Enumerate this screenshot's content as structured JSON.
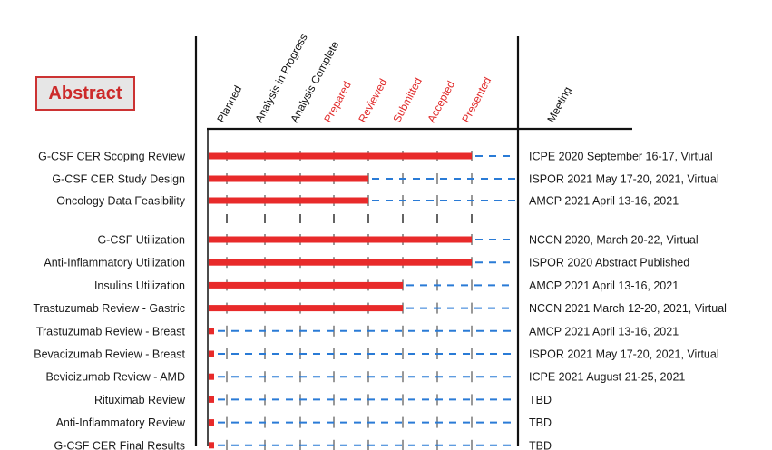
{
  "legend_box": {
    "label": "Abstract"
  },
  "meeting_header": "Meeting",
  "chart_data": {
    "type": "bar",
    "orientation": "horizontal",
    "title": "",
    "stages": [
      {
        "label": "Planned",
        "color": "#111111"
      },
      {
        "label": "Analysis in Progress",
        "color": "#111111"
      },
      {
        "label": "Analysis Complete",
        "color": "#111111"
      },
      {
        "label": "Prepared",
        "color": "#e02828"
      },
      {
        "label": "Reviewed",
        "color": "#e02828"
      },
      {
        "label": "Submitted",
        "color": "#e02828"
      },
      {
        "label": "Accepted",
        "color": "#e02828"
      },
      {
        "label": "Presented",
        "color": "#e02828"
      }
    ],
    "rows": [
      {
        "name": "G-CSF CER Scoping Review",
        "progress_stage": 8,
        "meeting": "ICPE 2020 September 16-17, Virtual",
        "group": 1
      },
      {
        "name": "G-CSF CER Study Design",
        "progress_stage": 5,
        "meeting": "ISPOR 2021 May 17-20, 2021, Virtual",
        "group": 1
      },
      {
        "name": "Oncology Data Feasibility",
        "progress_stage": 5,
        "meeting": "AMCP 2021 April 13-16, 2021",
        "group": 1
      },
      {
        "name": "G-CSF Utilization",
        "progress_stage": 8,
        "meeting": "NCCN 2020, March 20-22, Virtual",
        "group": 2
      },
      {
        "name": "Anti-Inflammatory Utilization",
        "progress_stage": 8,
        "meeting": "ISPOR 2020 Abstract Published",
        "group": 2
      },
      {
        "name": "Insulins Utilization",
        "progress_stage": 6,
        "meeting": "AMCP 2021 April 13-16, 2021",
        "group": 2
      },
      {
        "name": "Trastuzumab Review - Gastric",
        "progress_stage": 6,
        "meeting": "NCCN 2021 March 12-20, 2021, Virtual",
        "group": 2
      },
      {
        "name": "Trastuzumab Review - Breast",
        "progress_stage": 0.3,
        "meeting": "AMCP 2021 April 13-16, 2021",
        "group": 2
      },
      {
        "name": "Bevacizumab Review - Breast",
        "progress_stage": 0.3,
        "meeting": "ISPOR 2021 May 17-20, 2021, Virtual",
        "group": 2
      },
      {
        "name": "Bevicizumab Review - AMD",
        "progress_stage": 0.3,
        "meeting": "ICPE 2021 August 21-25, 2021",
        "group": 2
      },
      {
        "name": "Rituximab Review",
        "progress_stage": 0.3,
        "meeting": "TBD",
        "group": 2
      },
      {
        "name": "Anti-Inflammatory Review",
        "progress_stage": 0.3,
        "meeting": "TBD",
        "group": 2
      },
      {
        "name": "G-CSF CER Final Results",
        "progress_stage": 0.3,
        "meeting": "TBD",
        "group": 2
      }
    ],
    "colors": {
      "bar": "#e82a2a",
      "remaining": "#2a7bd6",
      "axis": "#111111",
      "tick": "#555555"
    },
    "grid": false
  }
}
